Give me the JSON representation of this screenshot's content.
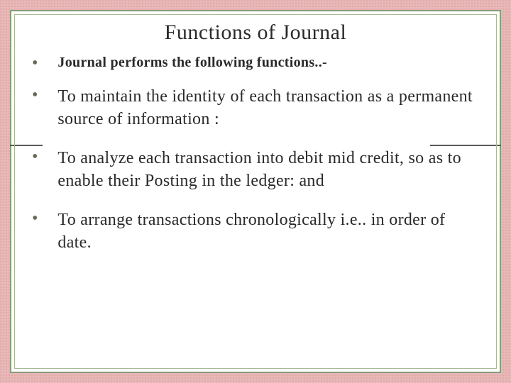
{
  "slide": {
    "title": "Functions of Journal",
    "intro": "Journal performs the following functions..-",
    "points": [
      "To maintain the identity of each transaction as a permanent source of information :",
      "To analyze each transaction into debit mid credit, so as to enable their Posting in the ledger: and",
      "To arrange transactions chronologically i.e.. in order of date."
    ],
    "colors": {
      "background": "#e8b8b8",
      "frame_outer": "#8a9a7a",
      "frame_inner": "#a8b898",
      "text": "#2a2a2a",
      "bullet": "#6a6a55",
      "hline": "#5a5a5a"
    },
    "typography": {
      "title_fontsize": 30,
      "intro_fontsize": 20,
      "body_fontsize": 24,
      "font_family": "Georgia"
    }
  }
}
